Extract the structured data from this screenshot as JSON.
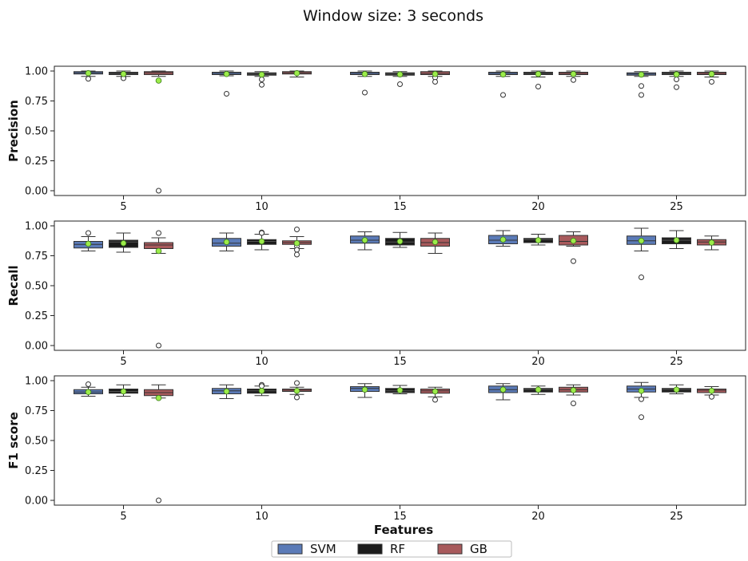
{
  "title": "Window size: 3 seconds",
  "xlabel": "Features",
  "colors": {
    "SVM": "#5b7bb8",
    "RF": "#1b1b1b",
    "GB": "#a85a5c",
    "mean_marker": "#9cec4a",
    "mean_edge": "#3a7a1a"
  },
  "legend": [
    "SVM",
    "RF",
    "GB"
  ],
  "chart_data": [
    {
      "type": "box",
      "ylabel": "Precision",
      "categories": [
        "5",
        "10",
        "15",
        "20",
        "25"
      ],
      "yticks": [
        "0.00",
        "0.25",
        "0.50",
        "0.75",
        "1.00"
      ],
      "ylim": [
        -0.04,
        1.04
      ],
      "series": [
        {
          "name": "SVM",
          "boxes": [
            {
              "low": 0.955,
              "q1": 0.975,
              "median": 0.985,
              "q3": 0.995,
              "high": 1.0,
              "mean": 0.982,
              "fliers": [
                0.935
              ]
            },
            {
              "low": 0.96,
              "q1": 0.97,
              "median": 0.98,
              "q3": 0.99,
              "high": 1.0,
              "mean": 0.975,
              "fliers": [
                0.81
              ]
            },
            {
              "low": 0.955,
              "q1": 0.97,
              "median": 0.98,
              "q3": 0.99,
              "high": 1.0,
              "mean": 0.975,
              "fliers": [
                0.82
              ]
            },
            {
              "low": 0.955,
              "q1": 0.97,
              "median": 0.98,
              "q3": 0.99,
              "high": 1.0,
              "mean": 0.972,
              "fliers": [
                0.8
              ]
            },
            {
              "low": 0.955,
              "q1": 0.965,
              "median": 0.975,
              "q3": 0.985,
              "high": 0.995,
              "mean": 0.97,
              "fliers": [
                0.875,
                0.8
              ]
            }
          ]
        },
        {
          "name": "RF",
          "boxes": [
            {
              "low": 0.955,
              "q1": 0.97,
              "median": 0.98,
              "q3": 0.99,
              "high": 1.0,
              "mean": 0.975,
              "fliers": [
                0.945,
                0.94
              ]
            },
            {
              "low": 0.955,
              "q1": 0.965,
              "median": 0.975,
              "q3": 0.985,
              "high": 0.995,
              "mean": 0.97,
              "fliers": [
                0.93,
                0.885
              ]
            },
            {
              "low": 0.955,
              "q1": 0.965,
              "median": 0.975,
              "q3": 0.985,
              "high": 0.995,
              "mean": 0.972,
              "fliers": [
                0.89
              ]
            },
            {
              "low": 0.95,
              "q1": 0.97,
              "median": 0.98,
              "q3": 0.99,
              "high": 1.0,
              "mean": 0.975,
              "fliers": [
                0.87
              ]
            },
            {
              "low": 0.955,
              "q1": 0.97,
              "median": 0.98,
              "q3": 0.99,
              "high": 1.0,
              "mean": 0.972,
              "fliers": [
                0.93,
                0.865
              ]
            }
          ]
        },
        {
          "name": "GB",
          "boxes": [
            {
              "low": 0.955,
              "q1": 0.97,
              "median": 0.985,
              "q3": 0.995,
              "high": 1.0,
              "mean": 0.92,
              "fliers": [
                0.0
              ]
            },
            {
              "low": 0.95,
              "q1": 0.975,
              "median": 0.985,
              "q3": 0.995,
              "high": 1.0,
              "mean": 0.982,
              "fliers": []
            },
            {
              "low": 0.955,
              "q1": 0.97,
              "median": 0.98,
              "q3": 0.995,
              "high": 1.0,
              "mean": 0.975,
              "fliers": [
                0.945,
                0.91
              ]
            },
            {
              "low": 0.955,
              "q1": 0.97,
              "median": 0.98,
              "q3": 0.99,
              "high": 1.0,
              "mean": 0.975,
              "fliers": [
                0.925
              ]
            },
            {
              "low": 0.95,
              "q1": 0.97,
              "median": 0.98,
              "q3": 0.99,
              "high": 1.0,
              "mean": 0.975,
              "fliers": [
                0.91
              ]
            }
          ]
        }
      ]
    },
    {
      "type": "box",
      "ylabel": "Recall",
      "categories": [
        "5",
        "10",
        "15",
        "20",
        "25"
      ],
      "yticks": [
        "0.00",
        "0.25",
        "0.50",
        "0.75",
        "1.00"
      ],
      "ylim": [
        -0.04,
        1.04
      ],
      "series": [
        {
          "name": "SVM",
          "boxes": [
            {
              "low": 0.79,
              "q1": 0.815,
              "median": 0.845,
              "q3": 0.87,
              "high": 0.91,
              "mean": 0.85,
              "fliers": [
                0.94
              ]
            },
            {
              "low": 0.79,
              "q1": 0.83,
              "median": 0.855,
              "q3": 0.895,
              "high": 0.94,
              "mean": 0.865,
              "fliers": []
            },
            {
              "low": 0.8,
              "q1": 0.855,
              "median": 0.88,
              "q3": 0.915,
              "high": 0.95,
              "mean": 0.88,
              "fliers": []
            },
            {
              "low": 0.83,
              "q1": 0.85,
              "median": 0.88,
              "q3": 0.92,
              "high": 0.96,
              "mean": 0.885,
              "fliers": []
            },
            {
              "low": 0.79,
              "q1": 0.845,
              "median": 0.875,
              "q3": 0.915,
              "high": 0.98,
              "mean": 0.875,
              "fliers": [
                0.57
              ]
            }
          ]
        },
        {
          "name": "RF",
          "boxes": [
            {
              "low": 0.78,
              "q1": 0.82,
              "median": 0.865,
              "q3": 0.88,
              "high": 0.94,
              "mean": 0.855,
              "fliers": []
            },
            {
              "low": 0.8,
              "q1": 0.845,
              "median": 0.87,
              "q3": 0.885,
              "high": 0.93,
              "mean": 0.87,
              "fliers": [
                0.945,
                0.94
              ]
            },
            {
              "low": 0.82,
              "q1": 0.84,
              "median": 0.865,
              "q3": 0.895,
              "high": 0.945,
              "mean": 0.87,
              "fliers": []
            },
            {
              "low": 0.84,
              "q1": 0.86,
              "median": 0.885,
              "q3": 0.895,
              "high": 0.93,
              "mean": 0.88,
              "fliers": []
            },
            {
              "low": 0.81,
              "q1": 0.85,
              "median": 0.88,
              "q3": 0.9,
              "high": 0.96,
              "mean": 0.88,
              "fliers": []
            }
          ]
        },
        {
          "name": "GB",
          "boxes": [
            {
              "low": 0.77,
              "q1": 0.81,
              "median": 0.84,
              "q3": 0.86,
              "high": 0.9,
              "mean": 0.79,
              "fliers": [
                0.94,
                0.0
              ]
            },
            {
              "low": 0.81,
              "q1": 0.845,
              "median": 0.86,
              "q3": 0.875,
              "high": 0.91,
              "mean": 0.855,
              "fliers": [
                0.97,
                0.83,
                0.8,
                0.76
              ]
            },
            {
              "low": 0.77,
              "q1": 0.83,
              "median": 0.86,
              "q3": 0.895,
              "high": 0.94,
              "mean": 0.865,
              "fliers": []
            },
            {
              "low": 0.83,
              "q1": 0.84,
              "median": 0.87,
              "q3": 0.92,
              "high": 0.95,
              "mean": 0.875,
              "fliers": [
                0.705
              ]
            },
            {
              "low": 0.8,
              "q1": 0.84,
              "median": 0.865,
              "q3": 0.885,
              "high": 0.915,
              "mean": 0.86,
              "fliers": []
            }
          ]
        }
      ]
    },
    {
      "type": "box",
      "ylabel": "F1 score",
      "categories": [
        "5",
        "10",
        "15",
        "20",
        "25"
      ],
      "yticks": [
        "0.00",
        "0.25",
        "0.50",
        "0.75",
        "1.00"
      ],
      "ylim": [
        -0.04,
        1.04
      ],
      "series": [
        {
          "name": "SVM",
          "boxes": [
            {
              "low": 0.87,
              "q1": 0.89,
              "median": 0.905,
              "q3": 0.925,
              "high": 0.945,
              "mean": 0.905,
              "fliers": [
                0.97
              ]
            },
            {
              "low": 0.85,
              "q1": 0.89,
              "median": 0.915,
              "q3": 0.935,
              "high": 0.965,
              "mean": 0.91,
              "fliers": []
            },
            {
              "low": 0.86,
              "q1": 0.91,
              "median": 0.935,
              "q3": 0.95,
              "high": 0.975,
              "mean": 0.925,
              "fliers": []
            },
            {
              "low": 0.84,
              "q1": 0.9,
              "median": 0.925,
              "q3": 0.955,
              "high": 0.975,
              "mean": 0.925,
              "fliers": []
            },
            {
              "low": 0.86,
              "q1": 0.905,
              "median": 0.93,
              "q3": 0.955,
              "high": 0.985,
              "mean": 0.915,
              "fliers": [
                0.845,
                0.695
              ]
            }
          ]
        },
        {
          "name": "RF",
          "boxes": [
            {
              "low": 0.87,
              "q1": 0.895,
              "median": 0.91,
              "q3": 0.93,
              "high": 0.965,
              "mean": 0.91,
              "fliers": []
            },
            {
              "low": 0.875,
              "q1": 0.895,
              "median": 0.915,
              "q3": 0.93,
              "high": 0.955,
              "mean": 0.915,
              "fliers": [
                0.965,
                0.955
              ]
            },
            {
              "low": 0.89,
              "q1": 0.9,
              "median": 0.915,
              "q3": 0.935,
              "high": 0.96,
              "mean": 0.92,
              "fliers": []
            },
            {
              "low": 0.885,
              "q1": 0.905,
              "median": 0.925,
              "q3": 0.935,
              "high": 0.955,
              "mean": 0.925,
              "fliers": []
            },
            {
              "low": 0.89,
              "q1": 0.905,
              "median": 0.925,
              "q3": 0.935,
              "high": 0.965,
              "mean": 0.925,
              "fliers": []
            }
          ]
        },
        {
          "name": "GB",
          "boxes": [
            {
              "low": 0.855,
              "q1": 0.875,
              "median": 0.9,
              "q3": 0.925,
              "high": 0.965,
              "mean": 0.855,
              "fliers": [
                0.0
              ]
            },
            {
              "low": 0.885,
              "q1": 0.91,
              "median": 0.92,
              "q3": 0.93,
              "high": 0.945,
              "mean": 0.915,
              "fliers": [
                0.98,
                0.86
              ]
            },
            {
              "low": 0.865,
              "q1": 0.895,
              "median": 0.915,
              "q3": 0.93,
              "high": 0.945,
              "mean": 0.91,
              "fliers": [
                0.84
              ]
            },
            {
              "low": 0.88,
              "q1": 0.905,
              "median": 0.925,
              "q3": 0.945,
              "high": 0.965,
              "mean": 0.92,
              "fliers": [
                0.81
              ]
            },
            {
              "low": 0.88,
              "q1": 0.9,
              "median": 0.92,
              "q3": 0.93,
              "high": 0.95,
              "mean": 0.915,
              "fliers": [
                0.865
              ]
            }
          ]
        }
      ]
    }
  ]
}
